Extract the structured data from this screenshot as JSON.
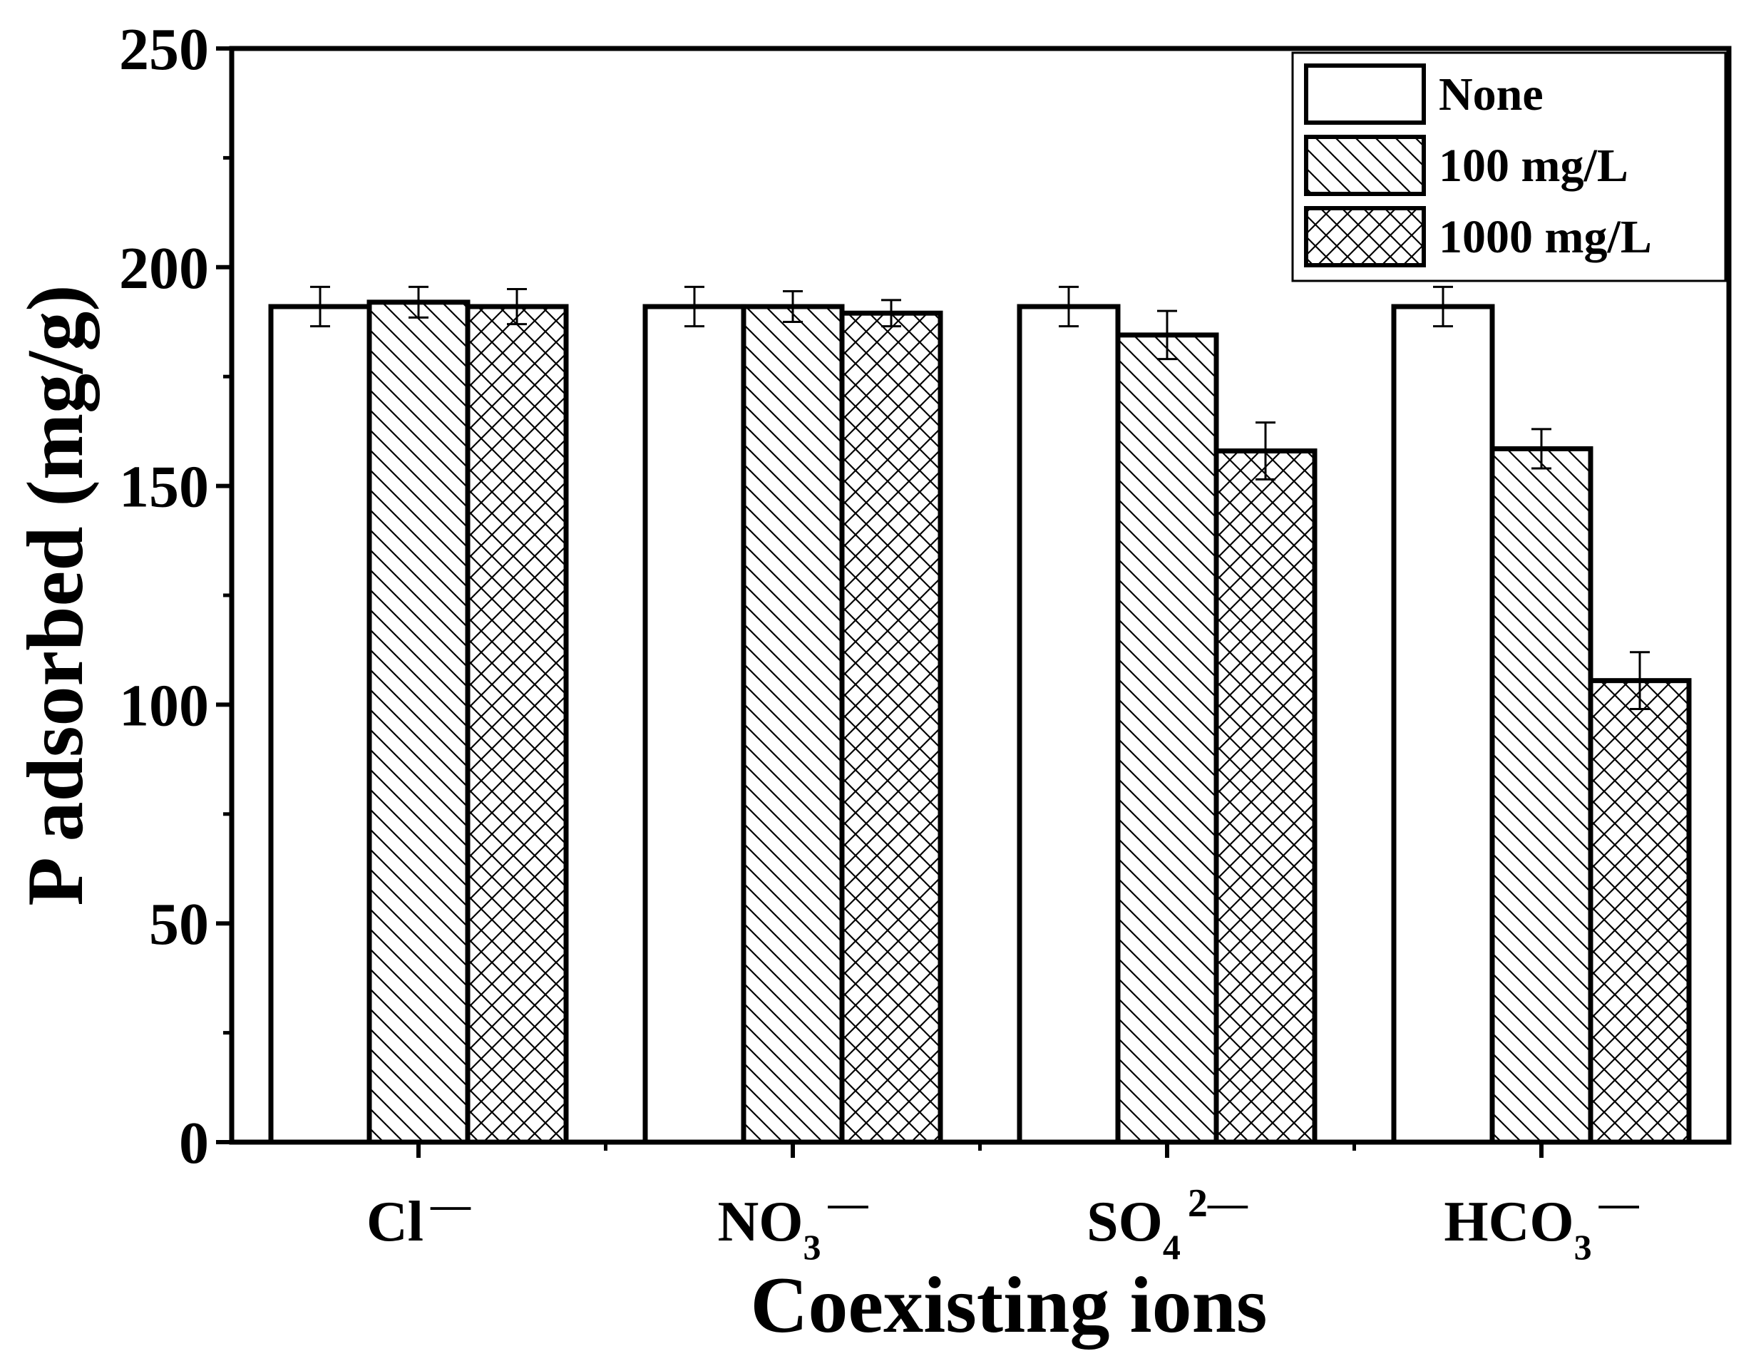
{
  "chart_data": {
    "type": "bar",
    "title": "",
    "xlabel": "Coexisting ions",
    "ylabel": "P adsorbed (mg/g)",
    "ylim": [
      0,
      250
    ],
    "yticks": [
      "0",
      "50",
      "100",
      "150",
      "200",
      "250"
    ],
    "ytick_values": [
      0,
      50,
      100,
      150,
      200,
      250
    ],
    "categories": [
      {
        "base": "Cl",
        "sub": "",
        "sup": "—"
      },
      {
        "base": "NO",
        "sub": "3",
        "sup": "—"
      },
      {
        "base": "SO",
        "sub": "4",
        "sup": "2—"
      },
      {
        "base": "HCO",
        "sub": "3",
        "sup": "—"
      }
    ],
    "series": [
      {
        "name": "None",
        "pattern": "none",
        "values": [
          191,
          191,
          191,
          191
        ],
        "errors": [
          4.5,
          4.5,
          4.5,
          4.5
        ]
      },
      {
        "name": "100 mg/L",
        "pattern": "diagonal",
        "values": [
          192,
          191,
          184.5,
          158.5
        ],
        "errors": [
          3.5,
          3.5,
          5.5,
          4.5
        ]
      },
      {
        "name": "1000 mg/L",
        "pattern": "crosshatch",
        "values": [
          191,
          189.5,
          158,
          105.5
        ],
        "errors": [
          4,
          3,
          6.5,
          6.5
        ]
      }
    ],
    "legend_position": "top-right",
    "grid": false
  }
}
